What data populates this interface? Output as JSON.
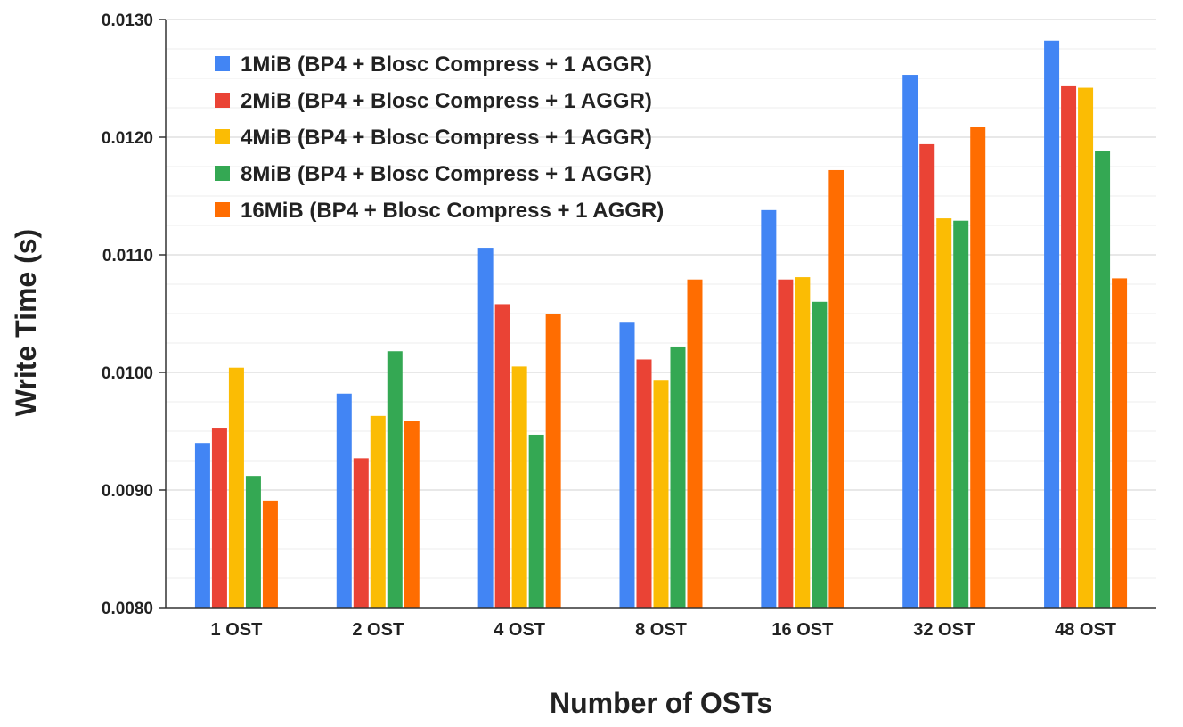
{
  "chart_data": {
    "type": "bar",
    "title": "",
    "xlabel": "Number of OSTs",
    "ylabel": "Write Time (s)",
    "ylim": [
      0.008,
      0.013
    ],
    "yticks": [
      "0.0080",
      "0.0090",
      "0.0100",
      "0.0110",
      "0.0120",
      "0.0130"
    ],
    "categories": [
      "1 OST",
      "2 OST",
      "4 OST",
      "8 OST",
      "16 OST",
      "32 OST",
      "48 OST"
    ],
    "legend_position": "top-left",
    "series": [
      {
        "name": "1MiB (BP4 + Blosc Compress + 1 AGGR)",
        "color": "#4285F4",
        "values": [
          0.0094,
          0.00982,
          0.01106,
          0.01043,
          0.01138,
          0.01253,
          0.01282
        ]
      },
      {
        "name": "2MiB (BP4 + Blosc Compress + 1 AGGR)",
        "color": "#EA4335",
        "values": [
          0.00953,
          0.00927,
          0.01058,
          0.01011,
          0.01079,
          0.01194,
          0.01244
        ]
      },
      {
        "name": "4MiB (BP4 + Blosc Compress + 1 AGGR)",
        "color": "#FBBC04",
        "values": [
          0.01004,
          0.00963,
          0.01005,
          0.00993,
          0.01081,
          0.01131,
          0.01242
        ]
      },
      {
        "name": "8MiB (BP4 + Blosc Compress + 1 AGGR)",
        "color": "#34A853",
        "values": [
          0.00912,
          0.01018,
          0.00947,
          0.01022,
          0.0106,
          0.01129,
          0.01188
        ]
      },
      {
        "name": "16MiB (BP4 + Blosc Compress + 1 AGGR)",
        "color": "#FF6D01",
        "values": [
          0.00891,
          0.00959,
          0.0105,
          0.01079,
          0.01172,
          0.01209,
          0.0108
        ]
      }
    ]
  }
}
